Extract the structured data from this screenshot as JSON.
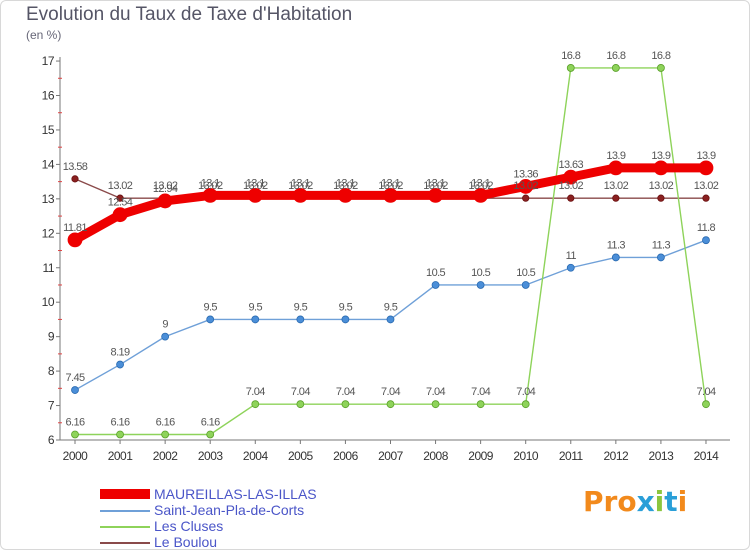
{
  "header": {
    "title": "Evolution du Taux de Taxe d'Habitation",
    "subtitle": "(en %)"
  },
  "logo": {
    "text": "Proxiti",
    "colors": [
      "#f28a1c",
      "#f28a1c",
      "#f28a1c",
      "#2a9fd8",
      "#8cc63f",
      "#2a9fd8",
      "#f28a1c"
    ]
  },
  "chart_data": {
    "type": "line",
    "title": "Evolution du Taux de Taxe d'Habitation",
    "ylabel": "(en %)",
    "xlabel": "",
    "ylim": [
      6,
      17
    ],
    "yticks": [
      "6",
      "7",
      "8",
      "9",
      "10",
      "11",
      "12",
      "13",
      "14",
      "15",
      "16",
      "17"
    ],
    "categories": [
      "2000",
      "2001",
      "2002",
      "2003",
      "2004",
      "2005",
      "2006",
      "2007",
      "2008",
      "2009",
      "2010",
      "2011",
      "2012",
      "2013",
      "2014"
    ],
    "grid": false,
    "legend_position": "bottom-left",
    "series": [
      {
        "name": "MAUREILLAS-LAS-ILLAS",
        "color": "#ee0000",
        "values": [
          11.81,
          12.54,
          12.94,
          13.1,
          13.1,
          13.1,
          13.1,
          13.1,
          13.1,
          13.1,
          13.36,
          13.63,
          13.9,
          13.9,
          13.9
        ],
        "labels": [
          "11.81",
          "12.54",
          "12.94",
          "13.1",
          "13.1",
          "13.1",
          "13.1",
          "13.1",
          "13.1",
          "13.1",
          "13.36",
          "13.63",
          "13.9",
          "13.9",
          "13.9"
        ]
      },
      {
        "name": "Saint-Jean-Pla-de-Corts",
        "color": "#6fa0d8",
        "values": [
          7.45,
          8.19,
          9,
          9.5,
          9.5,
          9.5,
          9.5,
          9.5,
          10.5,
          10.5,
          10.5,
          11,
          11.3,
          11.3,
          11.8
        ],
        "labels": [
          "7.45",
          "8.19",
          "9",
          "9.5",
          "9.5",
          "9.5",
          "9.5",
          "9.5",
          "10.5",
          "10.5",
          "10.5",
          "11",
          "11.3",
          "11.3",
          "11.8"
        ]
      },
      {
        "name": "Les Cluses",
        "color": "#8ed35a",
        "values": [
          6.16,
          6.16,
          6.16,
          6.16,
          7.04,
          7.04,
          7.04,
          7.04,
          7.04,
          7.04,
          7.04,
          16.8,
          16.8,
          16.8,
          7.04
        ],
        "labels": [
          "6.16",
          "6.16",
          "6.16",
          "6.16",
          "7.04",
          "7.04",
          "7.04",
          "7.04",
          "7.04",
          "7.04",
          "7.04",
          "16.8",
          "16.8",
          "16.8",
          "7.04"
        ]
      },
      {
        "name": "Le Boulou",
        "color": "#8a4a4a",
        "values": [
          13.58,
          13.02,
          13.02,
          13.02,
          13.02,
          13.02,
          13.02,
          13.02,
          13.02,
          13.02,
          13.02,
          13.02,
          13.02,
          13.02,
          13.02
        ],
        "labels": [
          "13.58",
          "13.02",
          "13.02",
          "13.02",
          "13.02",
          "13.02",
          "13.02",
          "13.02",
          "13.02",
          "13.02",
          "13.02",
          "13.02",
          "13.02",
          "13.02",
          "13.02"
        ]
      }
    ]
  }
}
